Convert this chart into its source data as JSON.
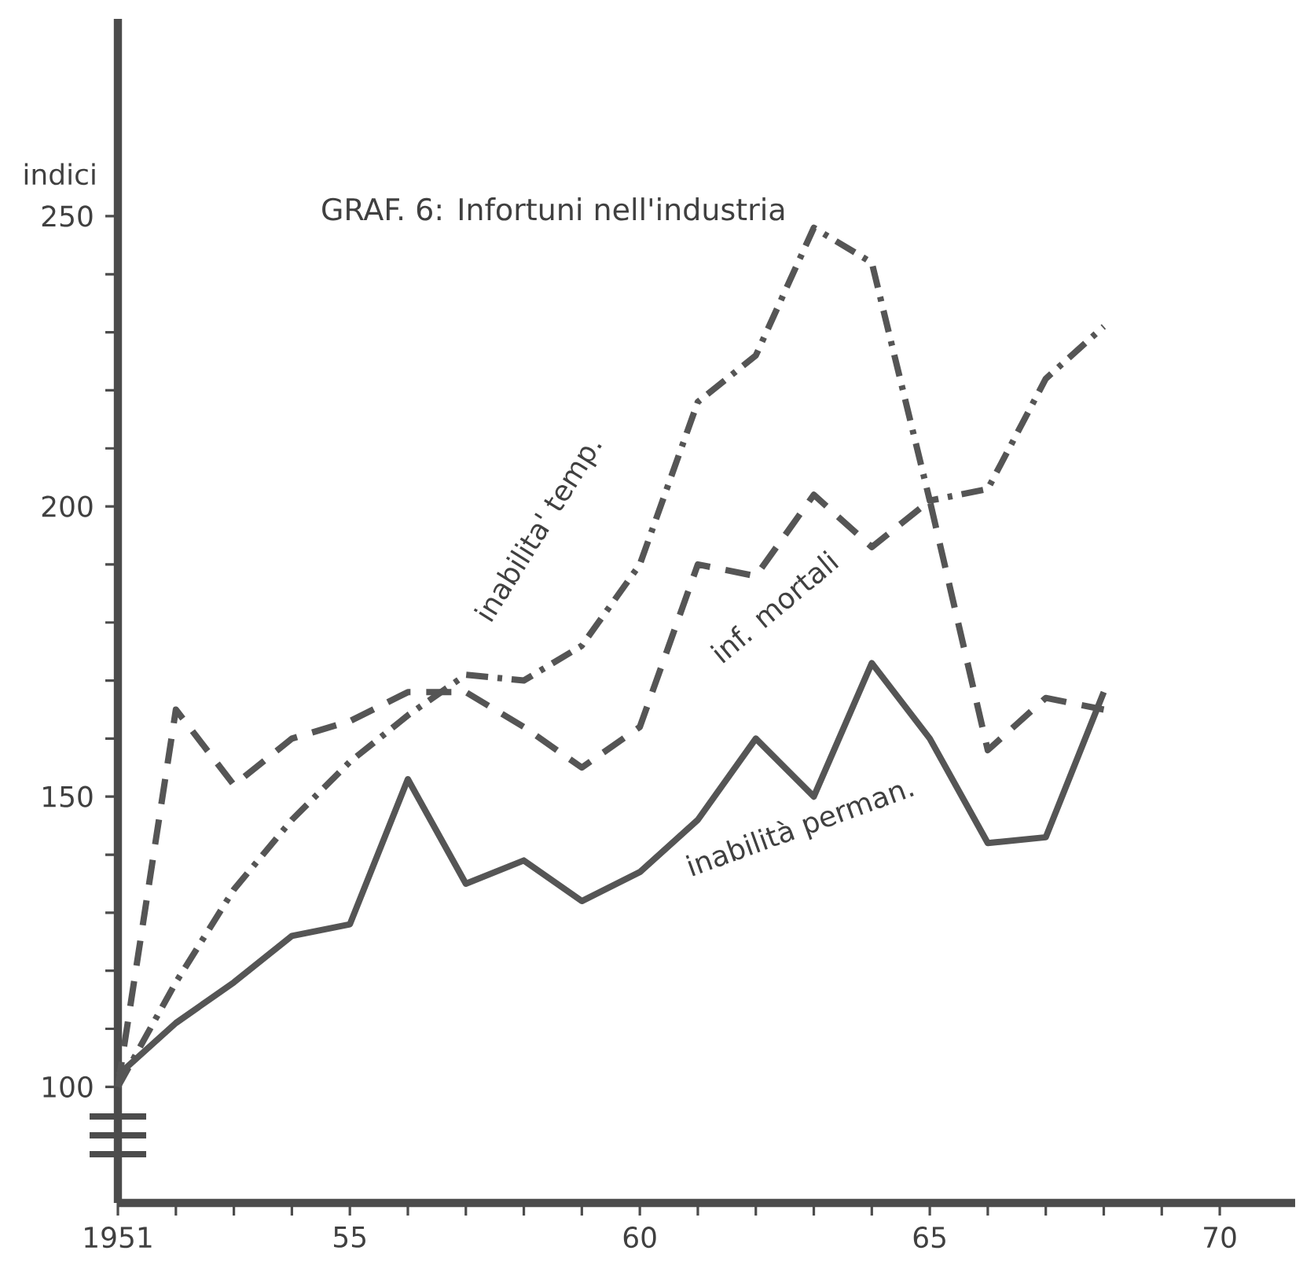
{
  "chart_data": {
    "type": "line",
    "title": "GRAF. 6: Infortuni nell'industria",
    "ylabel": "indici",
    "x": [
      1951,
      1952,
      1953,
      1954,
      1955,
      1956,
      1957,
      1958,
      1959,
      1960,
      1961,
      1962,
      1963,
      1964,
      1965,
      1966,
      1967,
      1968
    ],
    "series": [
      {
        "name": "inabilita' temp.",
        "color": "#555555",
        "line_style": "dashdot",
        "values": [
          100,
          118,
          134,
          146,
          156,
          164,
          171,
          170,
          176,
          190,
          218,
          226,
          248,
          242,
          201,
          203,
          222,
          231
        ]
      },
      {
        "name": "inf. mortali",
        "color": "#555555",
        "line_style": "dashed",
        "values": [
          100,
          165,
          152,
          160,
          163,
          168,
          168,
          162,
          155,
          162,
          190,
          188,
          202,
          193,
          201,
          158,
          167,
          165
        ]
      },
      {
        "name": "inabilità perman.",
        "color": "#555555",
        "line_style": "solid",
        "values": [
          102,
          111,
          118,
          126,
          128,
          153,
          135,
          139,
          132,
          137,
          146,
          160,
          150,
          173,
          160,
          142,
          143,
          168
        ]
      }
    ],
    "xlim": [
      1951,
      1971.3
    ],
    "ylim": [
      80,
      284
    ],
    "xticks": [
      1951,
      {
        "value": 1952,
        "label": null
      },
      {
        "value": 1953,
        "label": null
      },
      {
        "value": 1954,
        "label": null
      },
      {
        "value": 1955,
        "label": "55"
      },
      {
        "value": 1956,
        "label": null
      },
      {
        "value": 1957,
        "label": null
      },
      {
        "value": 1958,
        "label": null
      },
      {
        "value": 1959,
        "label": null
      },
      {
        "value": 1960,
        "label": "60"
      },
      {
        "value": 1961,
        "label": null
      },
      {
        "value": 1962,
        "label": null
      },
      {
        "value": 1963,
        "label": null
      },
      {
        "value": 1964,
        "label": null
      },
      {
        "value": 1965,
        "label": "65"
      },
      {
        "value": 1966,
        "label": null
      },
      {
        "value": 1967,
        "label": null
      },
      {
        "value": 1968,
        "label": null
      },
      {
        "value": 1969,
        "label": null
      },
      {
        "value": 1970,
        "label": "70"
      }
    ],
    "yticks": [
      100,
      {
        "value": 110,
        "label": null
      },
      {
        "value": 120,
        "label": null
      },
      {
        "value": 130,
        "label": null
      },
      {
        "value": 140,
        "label": null
      },
      150,
      {
        "value": 160,
        "label": null
      },
      {
        "value": 170,
        "label": null
      },
      {
        "value": 180,
        "label": null
      },
      {
        "value": 190,
        "label": null
      },
      200,
      {
        "value": 210,
        "label": null
      },
      {
        "value": 220,
        "label": null
      },
      {
        "value": 230,
        "label": null
      },
      {
        "value": 240,
        "label": null
      },
      250
    ],
    "marker": "none"
  }
}
